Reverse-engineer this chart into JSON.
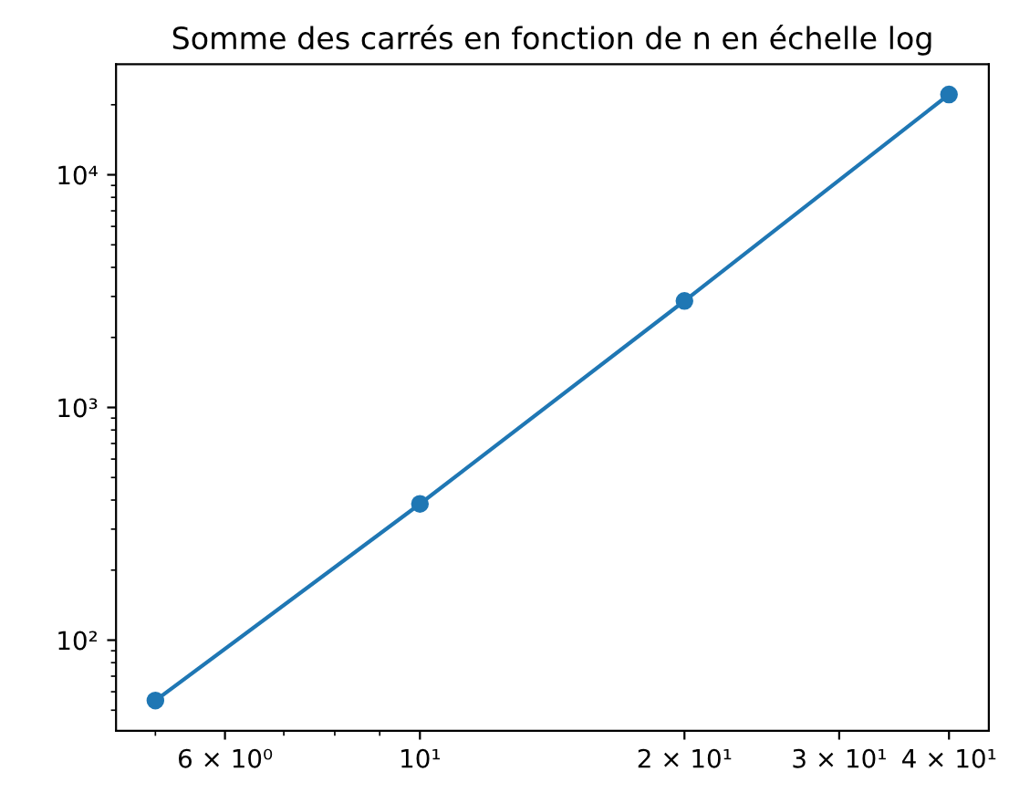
{
  "chart_data": {
    "type": "line",
    "title": "Somme des carrés en fonction de n en échelle log",
    "x": [
      5,
      10,
      20,
      40
    ],
    "series": [
      {
        "color": "#1f77b4",
        "values": [
          55,
          385,
          2870,
          22140
        ]
      }
    ],
    "log": "xy",
    "marker": "circle",
    "line_style": "solid",
    "grid": false,
    "xlim": [
      4.51,
      44.4
    ],
    "ylim": [
      40.8,
      29860
    ],
    "xticks": [
      {
        "value": 5,
        "label": null
      },
      {
        "value": 6,
        "label": "6 × 10⁰"
      },
      {
        "value": 7,
        "label": null
      },
      {
        "value": 8,
        "label": null
      },
      {
        "value": 9,
        "label": null
      },
      {
        "value": 10,
        "label": "10¹"
      },
      {
        "value": 20,
        "label": "2 × 10¹"
      },
      {
        "value": 30,
        "label": "3 × 10¹"
      },
      {
        "value": 40,
        "label": "4 × 10¹"
      }
    ],
    "yticks": [
      {
        "value": 50,
        "label": null
      },
      {
        "value": 60,
        "label": null
      },
      {
        "value": 70,
        "label": null
      },
      {
        "value": 80,
        "label": null
      },
      {
        "value": 90,
        "label": null
      },
      {
        "value": 100,
        "label": "10²"
      },
      {
        "value": 200,
        "label": null
      },
      {
        "value": 300,
        "label": null
      },
      {
        "value": 400,
        "label": null
      },
      {
        "value": 500,
        "label": null
      },
      {
        "value": 600,
        "label": null
      },
      {
        "value": 700,
        "label": null
      },
      {
        "value": 800,
        "label": null
      },
      {
        "value": 900,
        "label": null
      },
      {
        "value": 1000,
        "label": "10³"
      },
      {
        "value": 2000,
        "label": null
      },
      {
        "value": 3000,
        "label": null
      },
      {
        "value": 4000,
        "label": null
      },
      {
        "value": 5000,
        "label": null
      },
      {
        "value": 6000,
        "label": null
      },
      {
        "value": 7000,
        "label": null
      },
      {
        "value": 8000,
        "label": null
      },
      {
        "value": 9000,
        "label": null
      },
      {
        "value": 10000,
        "label": "10⁴"
      },
      {
        "value": 20000,
        "label": null
      }
    ]
  }
}
